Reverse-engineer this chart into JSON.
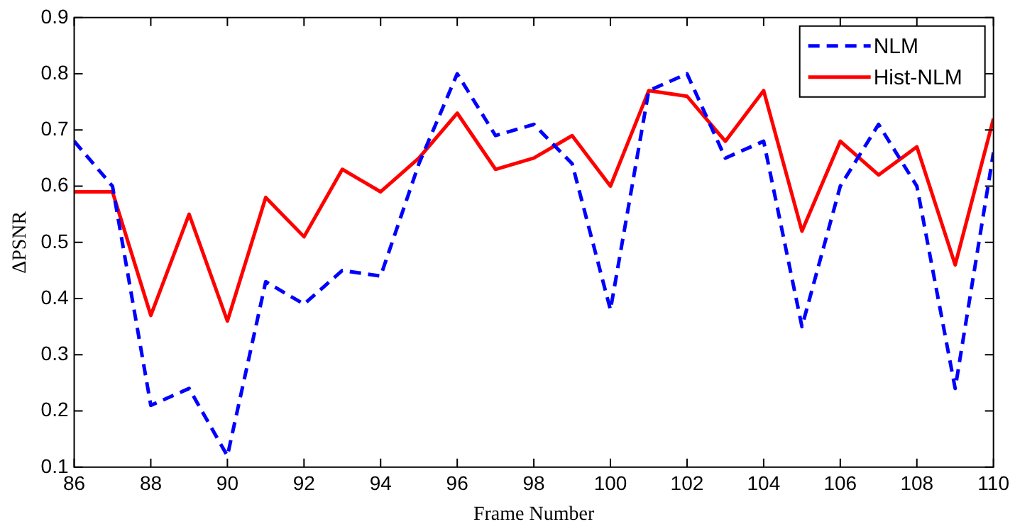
{
  "chart_data": {
    "type": "line",
    "xlabel": "Frame Number",
    "ylabel": "ΔPSNR",
    "x": [
      86,
      87,
      88,
      89,
      90,
      91,
      92,
      93,
      94,
      95,
      96,
      97,
      98,
      99,
      100,
      101,
      102,
      103,
      104,
      105,
      106,
      107,
      108,
      109,
      110
    ],
    "series": [
      {
        "name": "NLM",
        "color": "#0000ff",
        "line_style": "dashed",
        "values": [
          0.68,
          0.6,
          0.21,
          0.24,
          0.12,
          0.43,
          0.39,
          0.45,
          0.44,
          0.64,
          0.8,
          0.69,
          0.71,
          0.64,
          0.38,
          0.77,
          0.8,
          0.65,
          0.68,
          0.35,
          0.6,
          0.71,
          0.6,
          0.24,
          0.66
        ]
      },
      {
        "name": "Hist-NLM",
        "color": "#ff0000",
        "line_style": "solid",
        "values": [
          0.59,
          0.59,
          0.37,
          0.55,
          0.36,
          0.58,
          0.51,
          0.63,
          0.59,
          0.65,
          0.73,
          0.63,
          0.65,
          0.69,
          0.6,
          0.77,
          0.76,
          0.68,
          0.77,
          0.52,
          0.68,
          0.62,
          0.67,
          0.46,
          0.72
        ]
      }
    ],
    "xlim": [
      86,
      110
    ],
    "xticks": [
      86,
      88,
      90,
      92,
      94,
      96,
      98,
      100,
      102,
      104,
      106,
      108,
      110
    ],
    "ylim": [
      0.1,
      0.9
    ],
    "yticks": [
      0.1,
      0.2,
      0.3,
      0.4,
      0.5,
      0.6,
      0.7,
      0.8,
      0.9
    ],
    "grid": false,
    "legend": "top right",
    "marker": "none"
  }
}
